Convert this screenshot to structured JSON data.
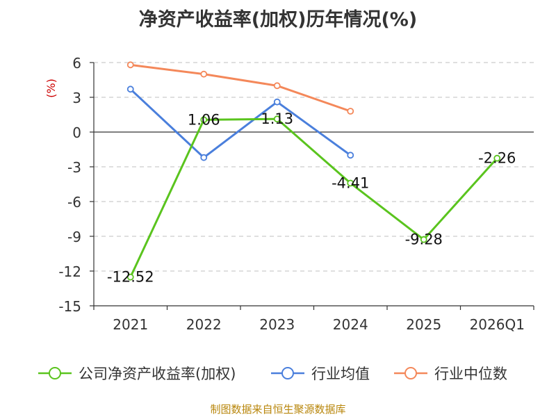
{
  "chart_data": {
    "type": "line",
    "title": "净资产收益率(加权)历年情况(%)",
    "ylabel": "(%)",
    "xlabel": "",
    "categories": [
      "2021",
      "2022",
      "2023",
      "2024",
      "2025",
      "2026Q1"
    ],
    "y_ticks": [
      6,
      3,
      0,
      -3,
      -6,
      -9,
      -12,
      -15
    ],
    "ylim": [
      -15,
      6
    ],
    "grid": true,
    "legend_position": "bottom",
    "series": [
      {
        "name": "公司净资产收益率(加权)",
        "color": "#5ac41e",
        "values": [
          -12.52,
          1.06,
          1.13,
          -4.41,
          -9.28,
          -2.26
        ],
        "labels": [
          "-12.52",
          "1.06",
          "1.13",
          "-4.41",
          "-9.28",
          "-2.26"
        ]
      },
      {
        "name": "行业均值",
        "color": "#4a7fdc",
        "values": [
          3.7,
          -2.2,
          2.6,
          -2.0,
          null,
          null
        ]
      },
      {
        "name": "行业中位数",
        "color": "#f4885a",
        "values": [
          5.8,
          5.0,
          4.0,
          1.8,
          null,
          null
        ]
      }
    ]
  },
  "source": "制图数据来自恒生聚源数据库"
}
